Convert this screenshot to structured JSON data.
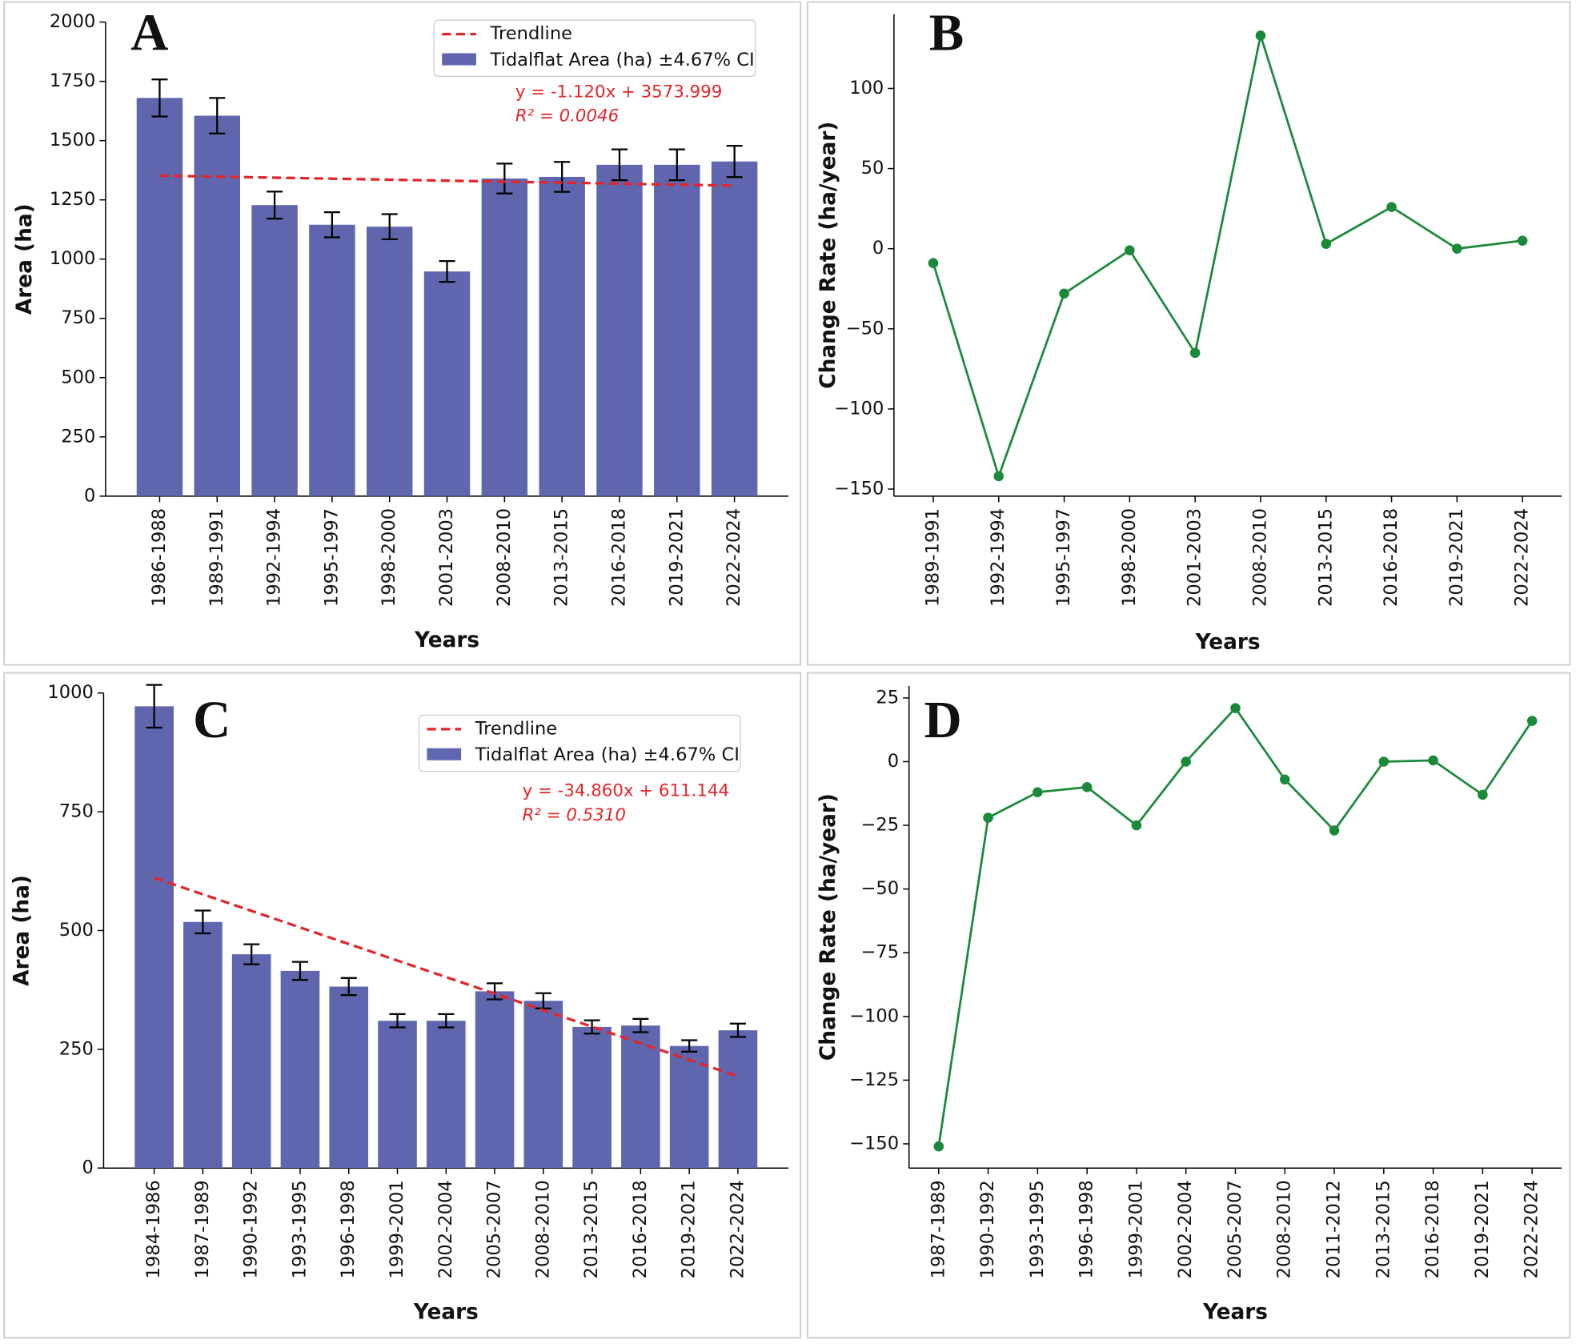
{
  "chart_data": [
    {
      "type": "bar",
      "panel_label": "A",
      "xlabel": "Years",
      "ylabel": "Area (ha)",
      "categories": [
        "1986-1988",
        "1989-1991",
        "1992-1994",
        "1995-1997",
        "1998-2000",
        "2001-2003",
        "2008-2010",
        "2013-2015",
        "2016-2018",
        "2019-2021",
        "2022-2024"
      ],
      "series": [
        {
          "name": "Tidalflat Area (ha) ±4.67% CI",
          "color": "#5f66ae",
          "values": [
            1680,
            1605,
            1228,
            1145,
            1137,
            948,
            1340,
            1347,
            1398,
            1398,
            1412
          ],
          "errors": [
            78,
            75,
            57,
            53,
            53,
            44,
            63,
            63,
            65,
            65,
            66
          ]
        }
      ],
      "trendline": {
        "name": "Trendline",
        "color": "#e3262a",
        "values": [
          1352,
          1310
        ]
      },
      "equation": "y = -1.120x + 3573.999",
      "r_squared": "R² = 0.0046",
      "ylim": [
        0,
        2000
      ],
      "yticks": [
        0,
        250,
        500,
        750,
        1000,
        1250,
        1500,
        1750,
        2000
      ]
    },
    {
      "type": "line",
      "panel_label": "B",
      "xlabel": "Years",
      "ylabel": "Change Rate (ha/year)",
      "categories": [
        "1989-1991",
        "1992-1994",
        "1995-1997",
        "1998-2000",
        "2001-2003",
        "2008-2010",
        "2013-2015",
        "2016-2018",
        "2019-2021",
        "2022-2024"
      ],
      "series": [
        {
          "color": "#1a8a3a",
          "values": [
            -9,
            -142,
            -28,
            -1,
            -65,
            133,
            3,
            26,
            0,
            5
          ]
        }
      ],
      "ylim": [
        -154.4,
        146.4
      ],
      "yticks": [
        {
          "value": -150,
          "label": "−150"
        },
        {
          "value": -100,
          "label": "−100"
        },
        {
          "value": -50,
          "label": "−50"
        },
        0,
        50,
        100
      ]
    },
    {
      "type": "bar",
      "panel_label": "C",
      "xlabel": "Years",
      "ylabel": "Area (ha)",
      "categories": [
        "1984-1986",
        "1987-1989",
        "1990-1992",
        "1993-1995",
        "1996-1998",
        "1999-2001",
        "2002-2004",
        "2005-2007",
        "2008-2010",
        "2013-2015",
        "2016-2018",
        "2019-2021",
        "2022-2024"
      ],
      "series": [
        {
          "name": "Tidalflat Area (ha) ±4.67% CI",
          "color": "#5f66ae",
          "values": [
            972,
            518,
            450,
            415,
            382,
            310,
            310,
            372,
            352,
            297,
            300,
            257,
            290
          ],
          "errors": [
            45,
            24,
            21,
            19,
            18,
            14,
            14,
            17,
            16,
            14,
            14,
            12,
            14
          ]
        }
      ],
      "trendline": {
        "name": "Trendline",
        "color": "#e3262a",
        "values": [
          611,
          193
        ]
      },
      "equation": "y = -34.860x + 611.144",
      "r_squared": "R² = 0.5310",
      "ylim": [
        0,
        1000
      ],
      "yticks": [
        0,
        250,
        500,
        750,
        1000
      ]
    },
    {
      "type": "line",
      "panel_label": "D",
      "xlabel": "Years",
      "ylabel": "Change Rate (ha/year)",
      "categories": [
        "1987-1989",
        "1990-1992",
        "1993-1995",
        "1996-1998",
        "1999-2001",
        "2002-2004",
        "2005-2007",
        "2008-2010",
        "2011-2012",
        "2013-2015",
        "2016-2018",
        "2019-2021",
        "2022-2024"
      ],
      "series": [
        {
          "color": "#1a8a3a",
          "values": [
            -151,
            -22,
            -12,
            -10,
            -25,
            0,
            21,
            -7,
            -27,
            0,
            0.5,
            -13,
            16
          ]
        }
      ],
      "ylim": [
        -159.5,
        29.7
      ],
      "yticks": [
        {
          "value": -150,
          "label": "−150"
        },
        {
          "value": -125,
          "label": "−125"
        },
        {
          "value": -100,
          "label": "−100"
        },
        {
          "value": -75,
          "label": "−75"
        },
        {
          "value": -50,
          "label": "−50"
        },
        {
          "value": -25,
          "label": "−25"
        },
        0,
        25
      ]
    }
  ]
}
